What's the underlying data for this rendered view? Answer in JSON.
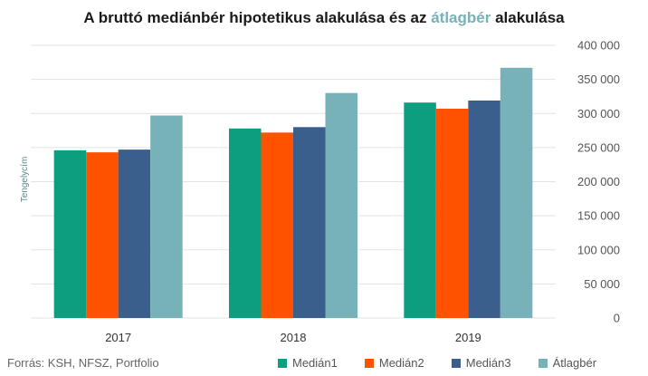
{
  "title": {
    "part1": "A bruttó mediánbér hipotetikus alakulása és az ",
    "highlight": "átlagbér",
    "part2": " alakulása"
  },
  "source": "Forrás: KSH, NFSZ, Portfolio",
  "colors": {
    "Medián1": "#0c9e7e",
    "Medián2": "#fe5200",
    "Medián3": "#3b5f8c",
    "Átlagbér": "#76b2b8",
    "grid": "#e3e3e3",
    "title_highlight": "#76b2b8"
  },
  "chart_data": {
    "type": "bar",
    "title": "A bruttó mediánbér hipotetikus alakulása és az átlagbér alakulása",
    "categories": [
      "2017",
      "2018",
      "2019"
    ],
    "series": [
      {
        "name": "Medián1",
        "values": [
          246000,
          278000,
          316000
        ]
      },
      {
        "name": "Medián2",
        "values": [
          243000,
          272000,
          307000
        ]
      },
      {
        "name": "Medián3",
        "values": [
          247000,
          280000,
          319000
        ]
      },
      {
        "name": "Átlagbér",
        "values": [
          297000,
          330000,
          367000
        ]
      }
    ],
    "ylabel": "Tengelycím",
    "xlabel": "",
    "ylim": [
      0,
      400000
    ],
    "yticks": [
      "0",
      "50 000",
      "100 000",
      "150 000",
      "200 000",
      "250 000",
      "300 000",
      "350 000",
      "400 000"
    ],
    "y_axis_side": "right",
    "grid": true,
    "legend_position": "bottom-right"
  }
}
